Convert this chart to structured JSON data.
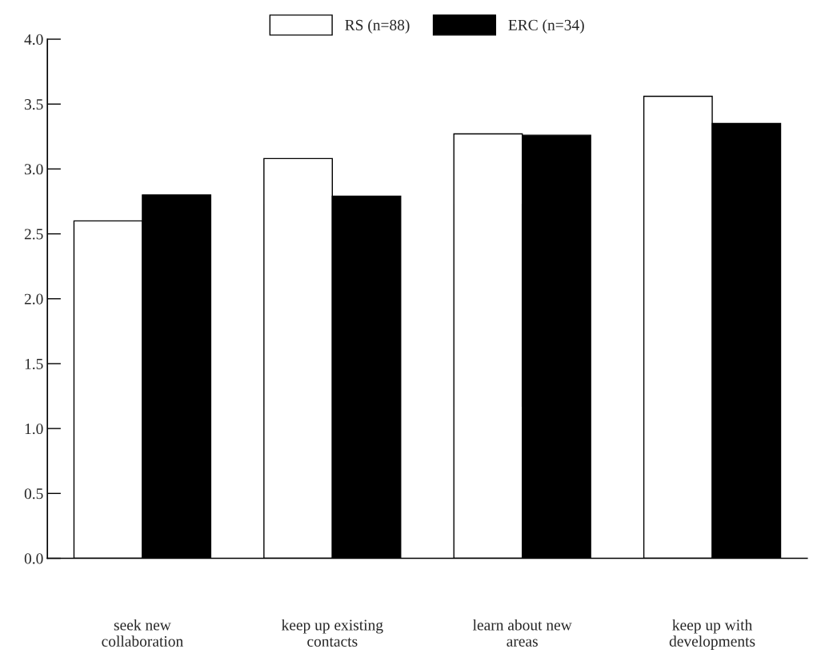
{
  "chart_data": {
    "type": "bar",
    "categories": [
      "seek new\ncollaboration",
      "keep up existing\ncontacts",
      "learn about new\nareas",
      "keep up with\ndevelopments"
    ],
    "series": [
      {
        "name": "RS (n=88)",
        "color": "#ffffff",
        "values": [
          2.6,
          3.08,
          3.27,
          3.56
        ]
      },
      {
        "name": "ERC (n=34)",
        "color": "#000000",
        "values": [
          2.8,
          2.79,
          3.26,
          3.35
        ]
      }
    ],
    "ylim": [
      0,
      4
    ],
    "yticks": [
      {
        "value": 0,
        "label": "0.0"
      },
      {
        "value": 0.5,
        "label": "0.5"
      },
      {
        "value": 1,
        "label": "1.0"
      },
      {
        "value": 1.5,
        "label": "1.5"
      },
      {
        "value": 2,
        "label": "2.0"
      },
      {
        "value": 2.5,
        "label": "2.5"
      },
      {
        "value": 3,
        "label": "3.0"
      },
      {
        "value": 3.5,
        "label": "3.5"
      },
      {
        "value": 4,
        "label": "4.0"
      }
    ],
    "grid": false,
    "legend": "top"
  }
}
